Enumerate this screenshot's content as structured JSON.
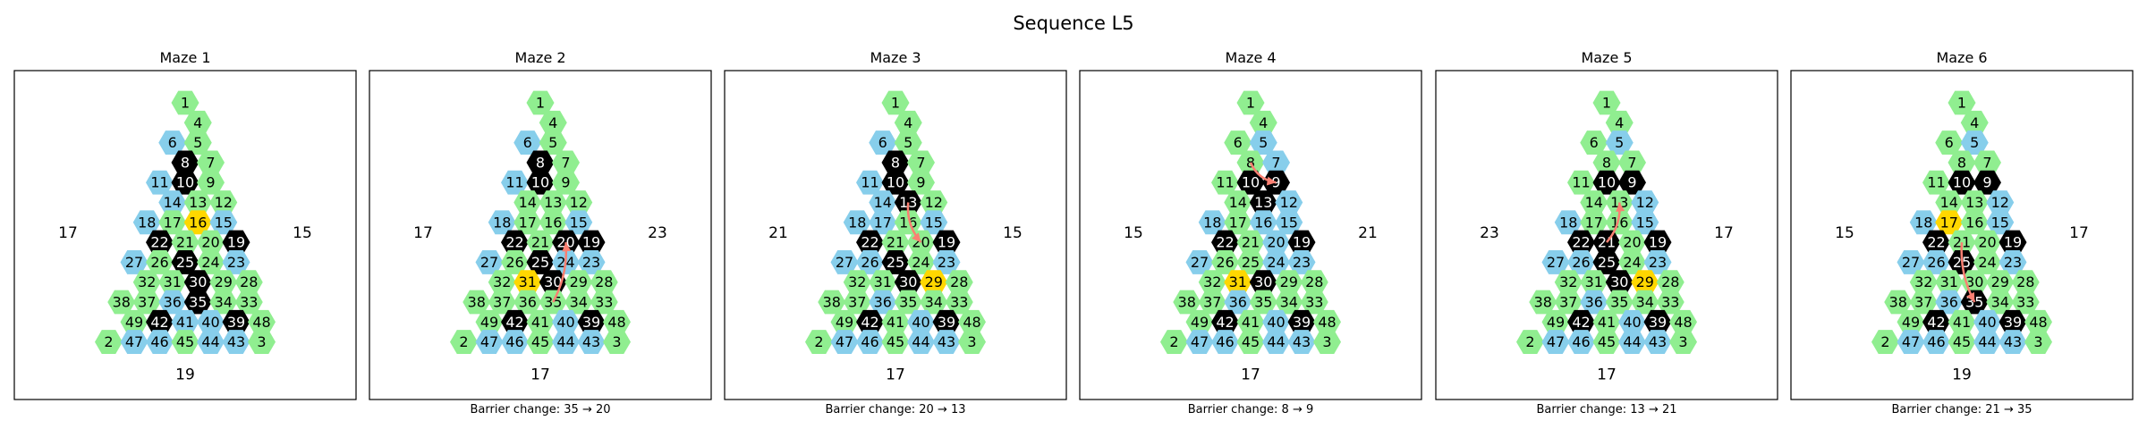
{
  "title": "Sequence L5",
  "colors": {
    "open": "#90EE90",
    "fixed": "#87CEEB",
    "barrier": "#000000",
    "agent": "#FFD700",
    "arrow": "#FA8072"
  },
  "mazes": [
    {
      "title": "Maze 1",
      "caption": "",
      "left": "17",
      "right": "15",
      "bottom": "19",
      "black": [
        8,
        10,
        22,
        25,
        19,
        30,
        35,
        42,
        39
      ],
      "gold": [
        16
      ],
      "blue": [
        6,
        11,
        14,
        18,
        15,
        27,
        23,
        36,
        47,
        46,
        41,
        40,
        44,
        43
      ],
      "arrow": []
    },
    {
      "title": "Maze 2",
      "caption": "Barrier change: 35 → 20",
      "left": "17",
      "right": "23",
      "bottom": "17",
      "black": [
        8,
        10,
        22,
        25,
        20,
        19,
        30,
        42,
        39
      ],
      "gold": [
        31
      ],
      "blue": [
        6,
        11,
        18,
        15,
        27,
        24,
        23,
        47,
        46,
        40,
        44,
        43
      ],
      "arrow": [
        35,
        20
      ]
    },
    {
      "title": "Maze 3",
      "caption": "Barrier change: 20 → 13",
      "left": "21",
      "right": "15",
      "bottom": "17",
      "black": [
        8,
        10,
        13,
        22,
        25,
        19,
        30,
        42,
        39
      ],
      "gold": [
        29
      ],
      "blue": [
        6,
        11,
        14,
        18,
        17,
        15,
        27,
        26,
        23,
        36,
        47,
        46,
        40,
        44,
        43
      ],
      "arrow": [
        13,
        20
      ]
    },
    {
      "title": "Maze 4",
      "caption": "Barrier change: 8 → 9",
      "left": "15",
      "right": "21",
      "bottom": "17",
      "black": [
        10,
        9,
        13,
        22,
        19,
        30,
        42,
        39
      ],
      "gold": [
        31
      ],
      "blue": [
        5,
        7,
        12,
        16,
        15,
        18,
        27,
        20,
        24,
        23,
        36,
        47,
        46,
        40,
        44,
        43
      ],
      "arrow": [
        8,
        9
      ]
    },
    {
      "title": "Maze 5",
      "caption": "Barrier change: 13 → 21",
      "left": "23",
      "right": "17",
      "bottom": "17",
      "black": [
        10,
        9,
        22,
        21,
        25,
        19,
        30,
        42,
        39
      ],
      "gold": [
        29
      ],
      "blue": [
        5,
        12,
        18,
        15,
        27,
        26,
        23,
        36,
        47,
        46,
        40,
        44,
        43
      ],
      "arrow": [
        21,
        13
      ]
    },
    {
      "title": "Maze 6",
      "caption": "Barrier change: 21 → 35",
      "left": "15",
      "right": "17",
      "bottom": "19",
      "black": [
        10,
        9,
        22,
        25,
        19,
        35,
        42,
        39
      ],
      "gold": [
        17
      ],
      "blue": [
        5,
        12,
        18,
        15,
        27,
        26,
        23,
        36,
        47,
        46,
        40,
        44,
        43
      ],
      "arrow": [
        21,
        35
      ]
    }
  ]
}
